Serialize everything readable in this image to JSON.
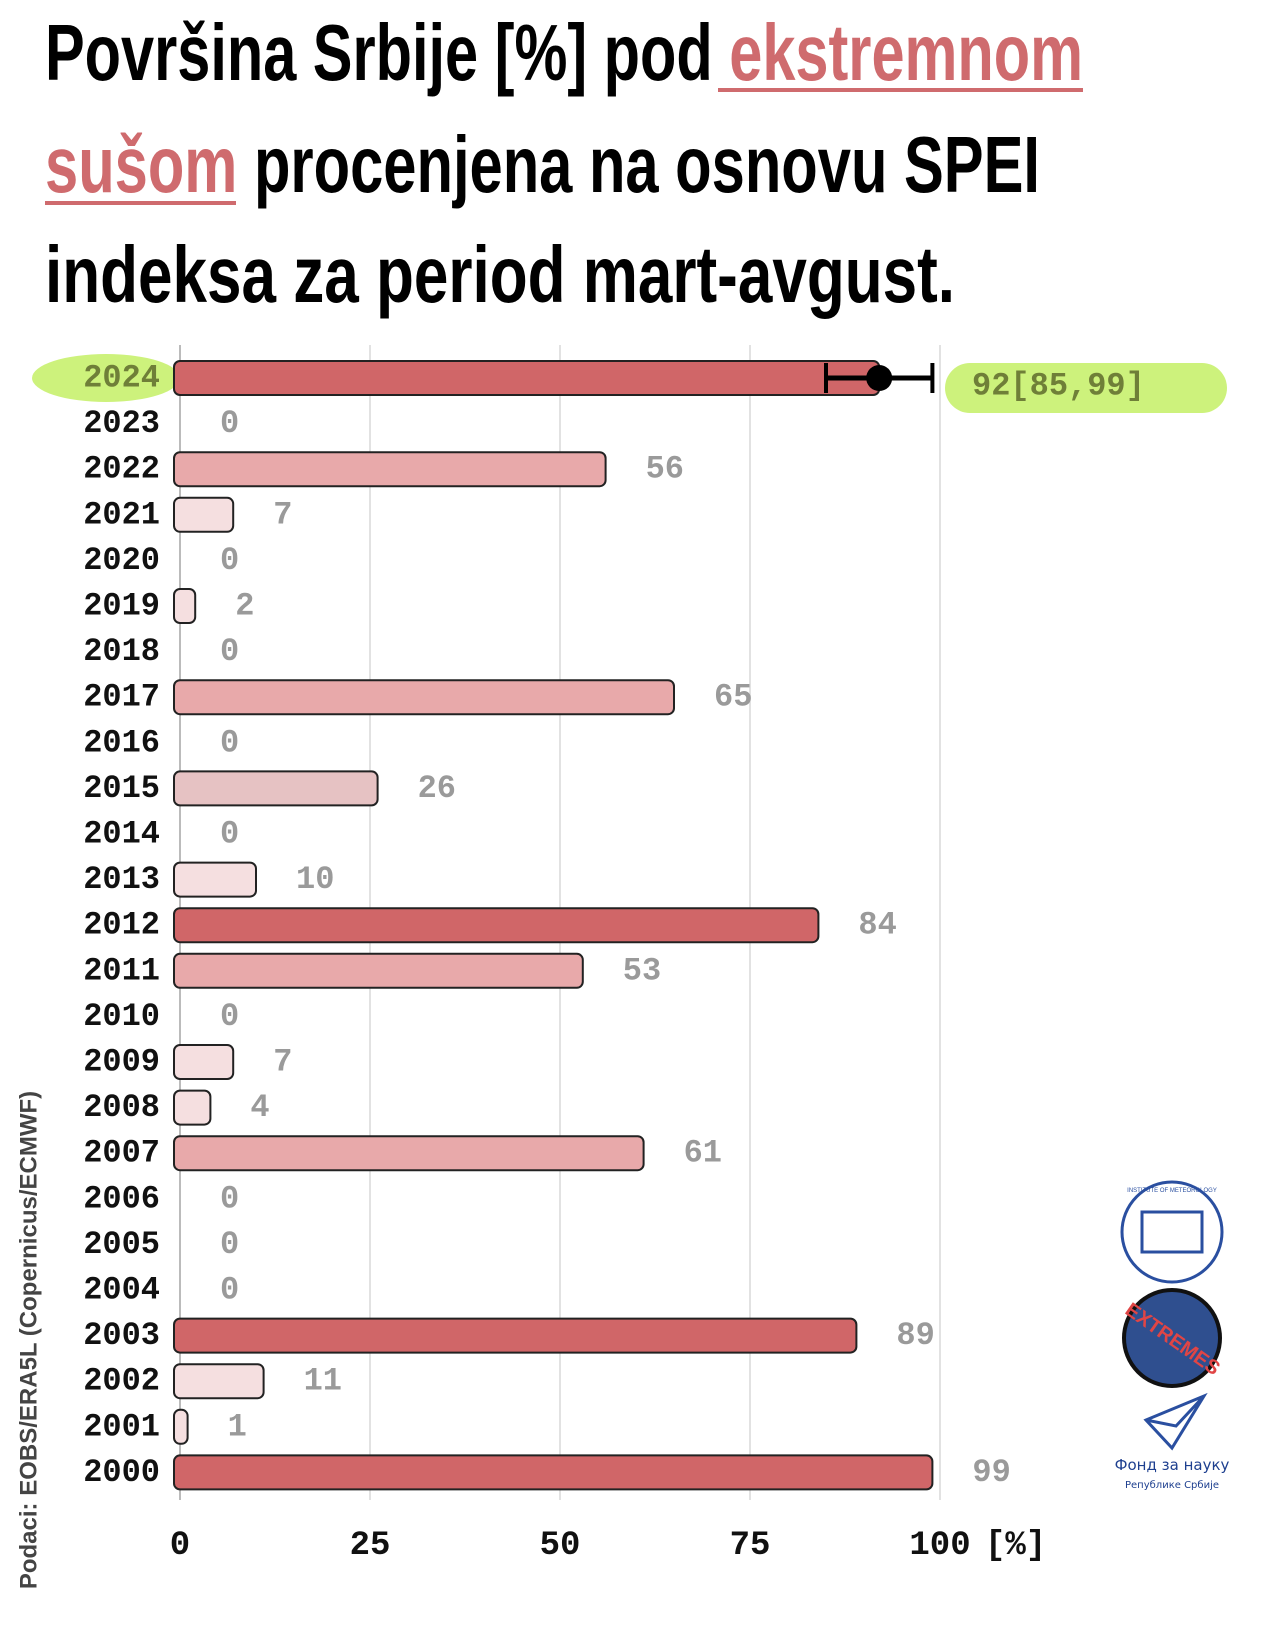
{
  "chart_data": {
    "type": "bar",
    "orientation": "horizontal",
    "title_parts": {
      "line1": "Površina Srbije [%] pod",
      "highlight1": "ekstremnom",
      "highlight2": "sušom",
      "line2": "procenjena na osnovu SPEI",
      "line3": "indeksa za period mart-avgust."
    },
    "categories": [
      "2024",
      "2023",
      "2022",
      "2021",
      "2020",
      "2019",
      "2018",
      "2017",
      "2016",
      "2015",
      "2014",
      "2013",
      "2012",
      "2011",
      "2010",
      "2009",
      "2008",
      "2007",
      "2006",
      "2005",
      "2004",
      "2003",
      "2002",
      "2001",
      "2000"
    ],
    "values": [
      92,
      0,
      56,
      7,
      0,
      2,
      0,
      65,
      0,
      26,
      0,
      10,
      84,
      53,
      0,
      7,
      4,
      61,
      0,
      0,
      0,
      89,
      11,
      1,
      99
    ],
    "value_labels": [
      "92[85,99]",
      "0",
      "56",
      "7",
      "0",
      "2",
      "0",
      "65",
      "0",
      "26",
      "0",
      "10",
      "84",
      "53",
      "0",
      "7",
      "4",
      "61",
      "0",
      "0",
      "0",
      "89",
      "11",
      "1",
      "99"
    ],
    "error_low": [
      85,
      null,
      null,
      null,
      null,
      null,
      null,
      null,
      null,
      null,
      null,
      null,
      null,
      null,
      null,
      null,
      null,
      null,
      null,
      null,
      null,
      null,
      null,
      null,
      null
    ],
    "error_high": [
      99,
      null,
      null,
      null,
      null,
      null,
      null,
      null,
      null,
      null,
      null,
      null,
      null,
      null,
      null,
      null,
      null,
      null,
      null,
      null,
      null,
      null,
      null,
      null,
      null
    ],
    "colors": [
      "#d06668",
      "#333333",
      "#e8a9aa",
      "#f5dfe0",
      "#333333",
      "#f5dfe0",
      "#333333",
      "#e8a9aa",
      "#333333",
      "#e6c2c3",
      "#333333",
      "#f5dfe0",
      "#d06668",
      "#e8a9aa",
      "#333333",
      "#f5dfe0",
      "#f5dfe0",
      "#e8a9aa",
      "#333333",
      "#333333",
      "#333333",
      "#d06668",
      "#f5dfe0",
      "#f5dfe0",
      "#d06668"
    ],
    "highlight_color": "#cdf27c",
    "xlim": [
      0,
      100
    ],
    "xticks": [
      0,
      25,
      50,
      75,
      100
    ],
    "x_unit": "[%]",
    "grid": true,
    "source": "Podaci: EOBS/ERA5L (Copernicus/ECMWF)"
  },
  "logos": {
    "institute": "INSTITUTE OF METEOROLOGY",
    "extremes": "EXTREMES",
    "fund": "Фонд за науку",
    "fund_sub": "Републике Србије"
  }
}
